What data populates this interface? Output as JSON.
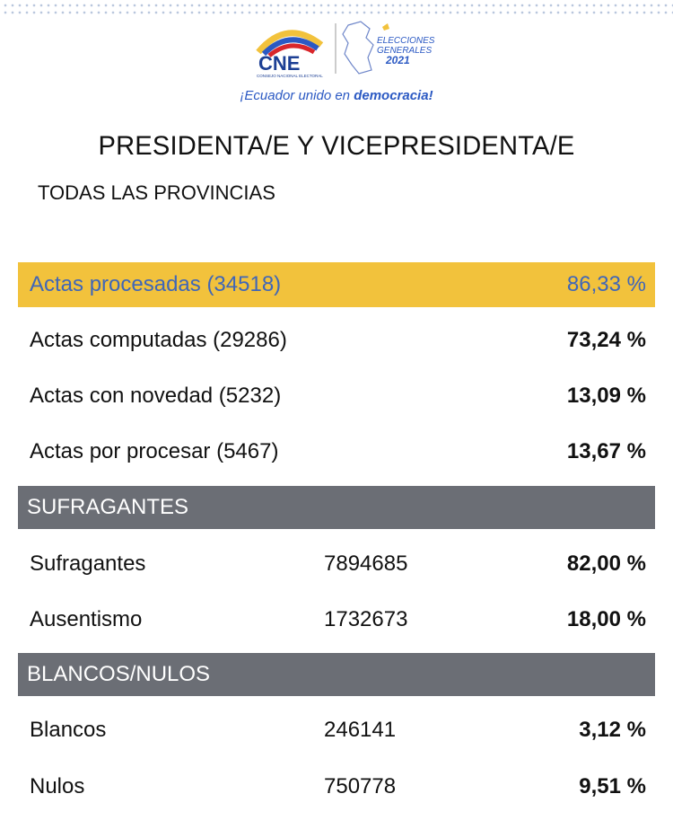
{
  "header": {
    "logo_text": "CNE",
    "logo_subtext": "CONSEJO NACIONAL ELECTORAL",
    "election_line1": "ELECCIONES",
    "election_line2": "GENERALES",
    "election_year": "2021",
    "slogan_prefix": "¡Ecuador unido en ",
    "slogan_bold": "democracia!"
  },
  "title": "PRESIDENTA/E Y VICEPRESIDENTA/E",
  "subtitle": "TODAS LAS PROVINCIAS",
  "actas": [
    {
      "label": "Actas procesadas (34518)",
      "pct": "86,33 %"
    },
    {
      "label": "Actas computadas (29286)",
      "pct": "73,24 %"
    },
    {
      "label": "Actas con novedad (5232)",
      "pct": "13,09 %"
    },
    {
      "label": "Actas por procesar (5467)",
      "pct": "13,67 %"
    }
  ],
  "sufragantes": {
    "heading": "SUFRAGANTES",
    "rows": [
      {
        "label": "Sufragantes",
        "value": "7894685",
        "pct": "82,00 %"
      },
      {
        "label": "Ausentismo",
        "value": "1732673",
        "pct": "18,00 %"
      }
    ]
  },
  "blancos_nulos": {
    "heading": "BLANCOS/NULOS",
    "rows": [
      {
        "label": "Blancos",
        "value": "246141",
        "pct": "3,12 %"
      },
      {
        "label": "Nulos",
        "value": "750778",
        "pct": "9,51 %"
      }
    ]
  },
  "colors": {
    "highlight": "#f2c23c",
    "highlight_text": "#3f66b8",
    "section_bg": "#6b6e75",
    "brand_blue": "#2b59c3",
    "brand_yellow": "#f2c23c",
    "brand_red": "#d9262b"
  }
}
